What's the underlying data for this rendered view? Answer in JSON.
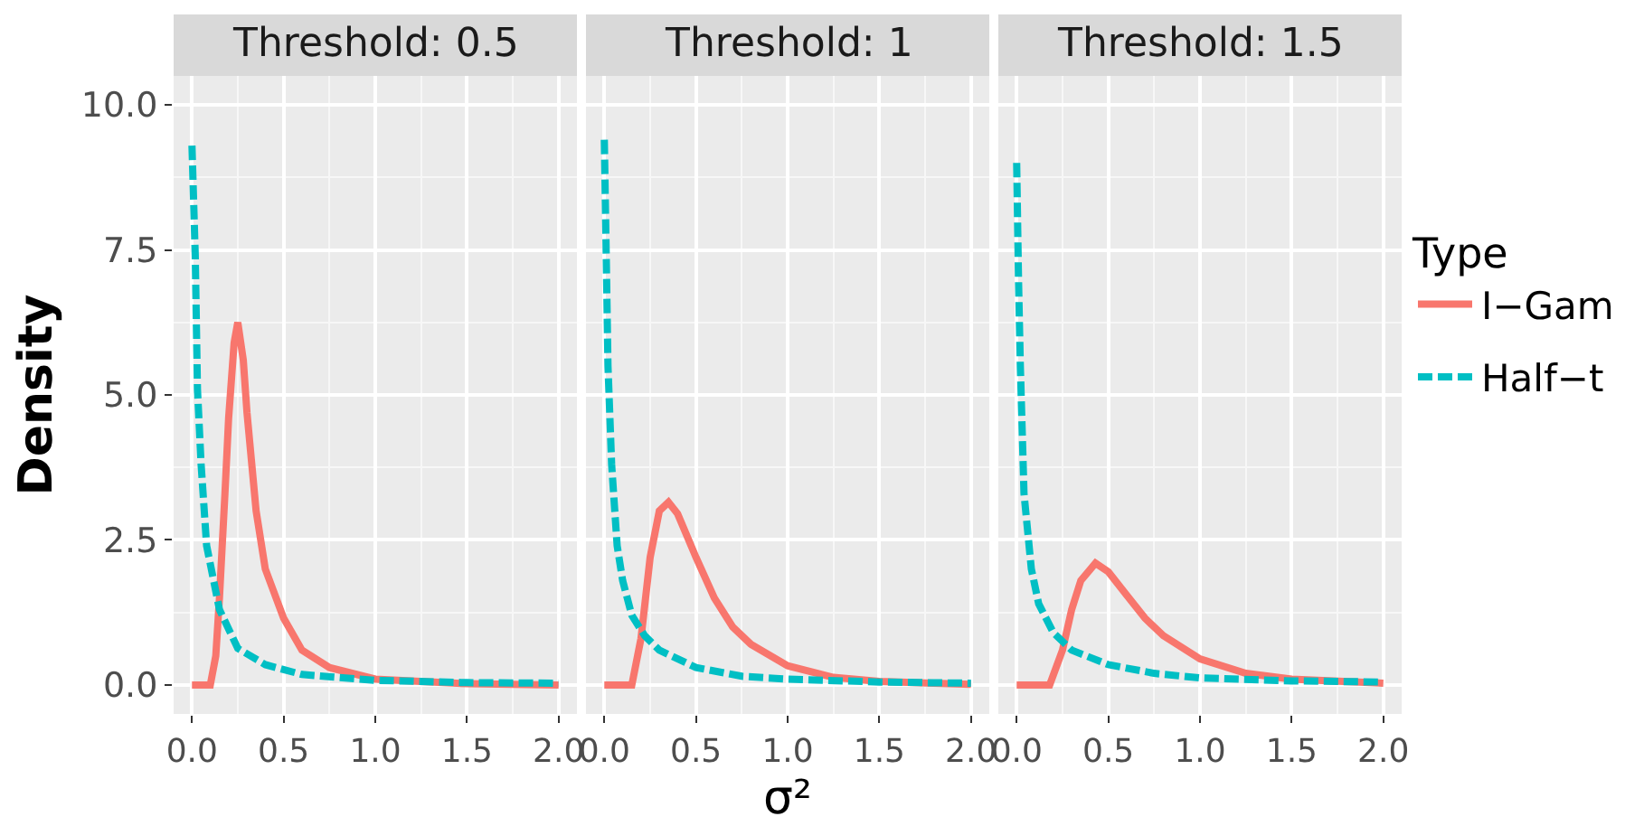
{
  "chart_data": [
    {
      "type": "line",
      "title": "Threshold: 0.5",
      "ylabel": "Density",
      "legend": "right",
      "legend_title": "Type",
      "xlim": [
        -0.1,
        2.1
      ],
      "ylim": [
        -0.5,
        10.5
      ],
      "xticks": [
        {
          "value": 0,
          "label": "0.0"
        },
        {
          "value": 0.5,
          "label": "0.5"
        },
        {
          "value": 1,
          "label": "1.0"
        },
        {
          "value": 1.5,
          "label": "1.5"
        },
        {
          "value": 2,
          "label": "2.0"
        }
      ],
      "yticks": [
        {
          "value": 0,
          "label": "0.0"
        },
        {
          "value": 2.5,
          "label": "2.5"
        },
        {
          "value": 5,
          "label": "5.0"
        },
        {
          "value": 7.5,
          "label": "7.5"
        },
        {
          "value": 10,
          "label": "10.0"
        }
      ],
      "grid": true,
      "series": [
        {
          "name": "I−Gam",
          "color": "#f8766d",
          "line_style": "solid",
          "x": [
            0,
            0.1,
            0.13,
            0.15,
            0.18,
            0.2,
            0.23,
            0.25,
            0.28,
            0.3,
            0.35,
            0.4,
            0.5,
            0.6,
            0.75,
            1.0,
            1.5,
            2.0
          ],
          "values": [
            0,
            0,
            0.5,
            1.5,
            3.3,
            4.6,
            5.9,
            6.25,
            5.6,
            4.7,
            3.0,
            2.0,
            1.15,
            0.6,
            0.3,
            0.1,
            0.02,
            0
          ]
        },
        {
          "name": "Half−t",
          "color": "#00bfc4",
          "line_style": "dashed",
          "x": [
            0,
            0.018,
            0.03,
            0.05,
            0.08,
            0.15,
            0.25,
            0.4,
            0.6,
            1.0,
            1.5,
            2.0
          ],
          "values": [
            9.3,
            7.4,
            5.1,
            3.8,
            2.4,
            1.3,
            0.63,
            0.35,
            0.18,
            0.08,
            0.04,
            0.03
          ]
        }
      ]
    },
    {
      "type": "line",
      "title": "Threshold: 1",
      "xlabel": "σ²",
      "xlim": [
        -0.1,
        2.1
      ],
      "ylim": [
        -0.5,
        10.5
      ],
      "xticks": [
        {
          "value": 0,
          "label": "0.0"
        },
        {
          "value": 0.5,
          "label": "0.5"
        },
        {
          "value": 1,
          "label": "1.0"
        },
        {
          "value": 1.5,
          "label": "1.5"
        },
        {
          "value": 2,
          "label": "2.0"
        }
      ],
      "yticks": [
        0,
        2.5,
        5,
        7.5,
        10
      ],
      "grid": true,
      "tick_labels": "x",
      "series": [
        {
          "color": "#f8766d",
          "line_style": "solid",
          "x": [
            0,
            0.15,
            0.2,
            0.25,
            0.3,
            0.35,
            0.4,
            0.5,
            0.6,
            0.7,
            0.8,
            1.0,
            1.25,
            1.5,
            2.0
          ],
          "values": [
            0,
            0,
            0.8,
            2.2,
            3.0,
            3.15,
            2.95,
            2.2,
            1.5,
            1.0,
            0.7,
            0.33,
            0.13,
            0.06,
            0.01
          ]
        },
        {
          "color": "#00bfc4",
          "line_style": "dashed",
          "x": [
            0,
            0.01,
            0.02,
            0.04,
            0.07,
            0.1,
            0.15,
            0.22,
            0.3,
            0.5,
            0.75,
            1.0,
            1.5,
            2.0
          ],
          "values": [
            9.4,
            7.5,
            5.5,
            3.8,
            2.4,
            1.8,
            1.2,
            0.85,
            0.6,
            0.3,
            0.15,
            0.1,
            0.05,
            0.03
          ]
        }
      ]
    },
    {
      "type": "line",
      "title": "Threshold: 1.5",
      "xlim": [
        -0.1,
        2.1
      ],
      "ylim": [
        -0.5,
        10.5
      ],
      "xticks": [
        {
          "value": 0,
          "label": "0.0"
        },
        {
          "value": 0.5,
          "label": "0.5"
        },
        {
          "value": 1,
          "label": "1.0"
        },
        {
          "value": 1.5,
          "label": "1.5"
        },
        {
          "value": 2,
          "label": "2.0"
        }
      ],
      "yticks": [
        0,
        2.5,
        5,
        7.5,
        10
      ],
      "grid": true,
      "tick_labels": "x",
      "series": [
        {
          "color": "#f8766d",
          "line_style": "solid",
          "x": [
            0,
            0.18,
            0.25,
            0.3,
            0.35,
            0.43,
            0.5,
            0.6,
            0.7,
            0.8,
            1.0,
            1.25,
            1.5,
            2.0
          ],
          "values": [
            0,
            0,
            0.6,
            1.3,
            1.8,
            2.1,
            1.95,
            1.55,
            1.15,
            0.85,
            0.45,
            0.2,
            0.1,
            0.03
          ]
        },
        {
          "color": "#00bfc4",
          "line_style": "dashed",
          "x": [
            0,
            0.01,
            0.02,
            0.04,
            0.08,
            0.12,
            0.2,
            0.3,
            0.5,
            0.75,
            1.0,
            1.5,
            2.0
          ],
          "values": [
            9.0,
            7.0,
            5.5,
            3.3,
            2.0,
            1.4,
            0.9,
            0.6,
            0.35,
            0.2,
            0.12,
            0.07,
            0.05
          ]
        }
      ]
    }
  ]
}
